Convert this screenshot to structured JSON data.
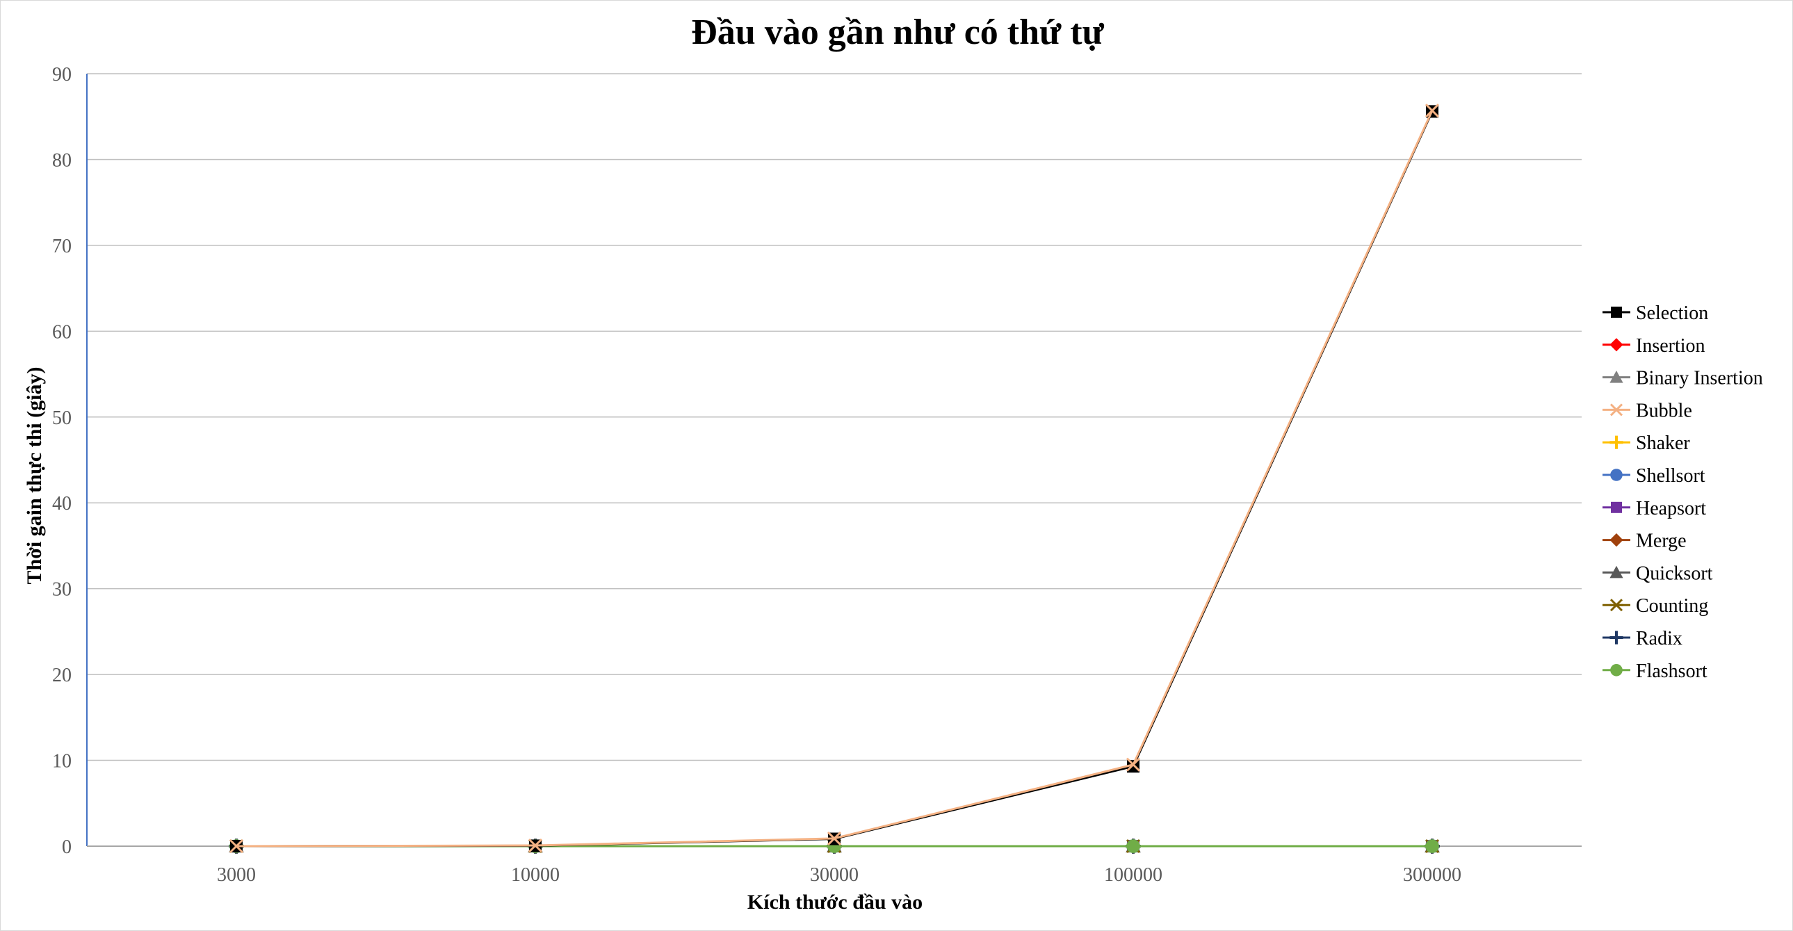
{
  "chart_data": {
    "type": "line",
    "title": "Đầu vào gần như có thứ tự",
    "xlabel": "Kích thước đầu vào",
    "ylabel": "Thời gain thực thi (giây)",
    "categories": [
      "3000",
      "10000",
      "30000",
      "100000",
      "300000"
    ],
    "ylim": [
      0,
      90
    ],
    "yticks": [
      0,
      10,
      20,
      30,
      40,
      50,
      60,
      70,
      80,
      90
    ],
    "grid": true,
    "legend_position": "right",
    "series": [
      {
        "name": "Selection",
        "color": "#000000",
        "marker": "square",
        "values": [
          0.0,
          0.05,
          0.85,
          9.3,
          85.6
        ]
      },
      {
        "name": "Insertion",
        "color": "#ff0000",
        "marker": "diamond",
        "values": [
          0.0,
          0.0,
          0.0,
          0.0,
          0.0
        ]
      },
      {
        "name": "Binary Insertion",
        "color": "#808080",
        "marker": "triangle",
        "values": [
          0.0,
          0.0,
          0.0,
          0.0,
          0.0
        ]
      },
      {
        "name": "Bubble",
        "color": "#f4b183",
        "marker": "x",
        "values": [
          0.0,
          0.08,
          0.9,
          9.5,
          85.7
        ]
      },
      {
        "name": "Shaker",
        "color": "#ffc000",
        "marker": "plus",
        "values": [
          0.0,
          0.0,
          0.0,
          0.0,
          0.0
        ]
      },
      {
        "name": "Shellsort",
        "color": "#4472c4",
        "marker": "circle",
        "values": [
          0.0,
          0.0,
          0.0,
          0.0,
          0.0
        ]
      },
      {
        "name": "Heapsort",
        "color": "#7030a0",
        "marker": "square",
        "values": [
          0.0,
          0.0,
          0.0,
          0.0,
          0.0
        ]
      },
      {
        "name": "Merge",
        "color": "#a0410d",
        "marker": "diamond",
        "values": [
          0.0,
          0.0,
          0.0,
          0.0,
          0.0
        ]
      },
      {
        "name": "Quicksort",
        "color": "#595959",
        "marker": "triangle",
        "values": [
          0.0,
          0.0,
          0.0,
          0.0,
          0.0
        ]
      },
      {
        "name": "Counting",
        "color": "#7f6000",
        "marker": "star",
        "values": [
          0.0,
          0.0,
          0.0,
          0.0,
          0.0
        ]
      },
      {
        "name": "Radix",
        "color": "#1f3864",
        "marker": "plus",
        "values": [
          0.0,
          0.0,
          0.0,
          0.0,
          0.0
        ]
      },
      {
        "name": "Flashsort",
        "color": "#70ad47",
        "marker": "circle",
        "values": [
          0.0,
          0.0,
          0.0,
          0.0,
          0.0
        ]
      }
    ]
  }
}
